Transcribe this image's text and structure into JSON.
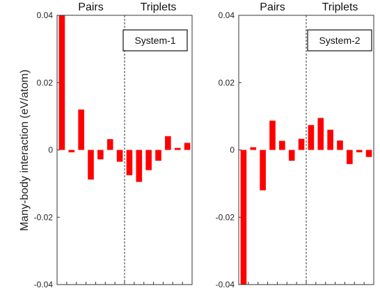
{
  "ylabel": "Many-body interaction (eV/atom)",
  "bar_color": "#ff0000",
  "chart_data": [
    {
      "type": "bar",
      "panel_label": "System-1",
      "group_labels": [
        "Pairs",
        "Triplets"
      ],
      "pairs_count": 7,
      "ylim": [
        -0.04,
        0.04
      ],
      "yticks": [
        0.04,
        0.02,
        0,
        -0.02,
        -0.04
      ],
      "ytick_labels": [
        "0.04",
        "0.02",
        "0",
        "-0.02",
        "-0.04"
      ],
      "values": [
        0.04,
        -0.0007,
        0.012,
        -0.0088,
        -0.0028,
        0.0032,
        -0.0035,
        -0.0075,
        -0.0095,
        -0.006,
        -0.0032,
        0.0041,
        0.0006,
        0.0021
      ]
    },
    {
      "type": "bar",
      "panel_label": "System-2",
      "group_labels": [
        "Pairs",
        "Triplets"
      ],
      "pairs_count": 7,
      "ylim": [
        -0.04,
        0.04
      ],
      "yticks": [
        0.04,
        0.02,
        0,
        -0.02,
        -0.04
      ],
      "ytick_labels": [
        "0.04",
        "0.02",
        "0",
        "-0.02",
        "-0.04"
      ],
      "values": [
        -0.04,
        0.0008,
        -0.012,
        0.0087,
        0.0027,
        -0.0032,
        0.0033,
        0.0074,
        0.0095,
        0.006,
        0.0028,
        -0.0042,
        -0.0007,
        -0.0021
      ]
    }
  ]
}
